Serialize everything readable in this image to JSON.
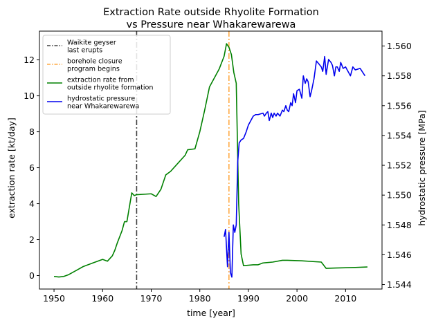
{
  "chart_data": {
    "type": "line",
    "title_lines": [
      "Extraction Rate outside Rhyolite Formation",
      "vs Pressure near Whakarewarewa"
    ],
    "xlabel": "time [year]",
    "ylabel_left": "extraction rate [kt/day]",
    "ylabel_right": "hydrostatic pressure [MPa]",
    "xlim": [
      1947,
      2017.5
    ],
    "ylim_left": [
      -0.75,
      13.6
    ],
    "ylim_right": [
      1.5437,
      1.561
    ],
    "x_ticks": [
      1950,
      1960,
      1970,
      1980,
      1990,
      2000,
      2010
    ],
    "x_tick_labels": [
      "1950",
      "1960",
      "1970",
      "1980",
      "1990",
      "2000",
      "2010"
    ],
    "left_ticks": [
      0,
      2,
      4,
      6,
      8,
      10,
      12
    ],
    "left_tick_labels": [
      "0",
      "2",
      "4",
      "6",
      "8",
      "10",
      "12"
    ],
    "right_ticks": [
      1.544,
      1.546,
      1.548,
      1.55,
      1.552,
      1.554,
      1.556,
      1.558,
      1.56
    ],
    "right_tick_labels": [
      "1.544",
      "1.546",
      "1.548",
      "1.550",
      "1.552",
      "1.554",
      "1.556",
      "1.558",
      "1.560"
    ],
    "grid": false,
    "legend_position": "upper-left",
    "vlines": [
      {
        "x": 1967,
        "name": "Waikite geyser last erupts",
        "label_lines": [
          "Waikite geyser",
          "last erupts"
        ],
        "color": "#404040",
        "dash": "8,3,2,3"
      },
      {
        "x": 1986,
        "name": "borehole closure program begins",
        "label_lines": [
          "borehole closure",
          "program begins"
        ],
        "color": "#ffaa44",
        "dash": "8,3,2,3"
      }
    ],
    "series": [
      {
        "name": "extraction rate from outside rhyolite formation",
        "label_lines": [
          "extraction rate from",
          "outside rhyolite formation"
        ],
        "color": "#008000",
        "axis": "left",
        "x": [
          1950,
          1951,
          1952,
          1953,
          1954,
          1955,
          1956,
          1957,
          1958,
          1960,
          1961,
          1962,
          1962.5,
          1963,
          1964,
          1964.5,
          1965,
          1966,
          1966.5,
          1967,
          1970,
          1971,
          1972,
          1973,
          1974,
          1975,
          1977,
          1977.5,
          1979,
          1980,
          1981,
          1982,
          1983,
          1984,
          1985,
          1985.5,
          1986,
          1986.5,
          1987,
          1987.5,
          1988,
          1988.5,
          1989,
          1991,
          1992,
          1993,
          1995,
          1997,
          1998,
          2001,
          2005,
          2006,
          2008,
          2012,
          2014.5
        ],
        "y": [
          -0.05,
          -0.08,
          -0.05,
          0.05,
          0.2,
          0.35,
          0.5,
          0.6,
          0.7,
          0.9,
          0.8,
          1.1,
          1.4,
          1.8,
          2.5,
          3.0,
          3.0,
          4.6,
          4.45,
          4.5,
          4.55,
          4.4,
          4.8,
          5.6,
          5.8,
          6.1,
          6.7,
          7.0,
          7.05,
          8.0,
          9.2,
          10.5,
          11.0,
          11.5,
          12.2,
          12.9,
          12.7,
          12.3,
          11.3,
          10.7,
          4.0,
          1.2,
          0.55,
          0.6,
          0.6,
          0.7,
          0.75,
          0.85,
          0.85,
          0.82,
          0.75,
          0.4,
          0.42,
          0.45,
          0.48
        ]
      },
      {
        "name": "hydrostatic pressure near Whakarewarewa",
        "label_lines": [
          "hydrostatic pressure",
          "near Whakarewarewa"
        ],
        "color": "#0000ee",
        "axis": "right",
        "x": [
          1985,
          1985.3,
          1985.7,
          1986,
          1986.3,
          1986.6,
          1986.9,
          1987.2,
          1987.5,
          1987.8,
          1988.1,
          1988.5,
          1989,
          1989.5,
          1990,
          1990.5,
          1991,
          1991.5,
          1992,
          1993,
          1993.3,
          1993.7,
          1994,
          1994.3,
          1994.7,
          1995,
          1995.3,
          1995.7,
          1996,
          1996.5,
          1997,
          1997.3,
          1997.7,
          1998,
          1998.3,
          1998.7,
          1999,
          1999.3,
          1999.7,
          2000,
          2000.5,
          2001,
          2001.3,
          2001.7,
          2002,
          2002.3,
          2002.7,
          2003,
          2003.5,
          2004,
          2004.5,
          2005,
          2005.3,
          2005.7,
          2006,
          2006.5,
          2007,
          2007.3,
          2007.7,
          2008,
          2008.3,
          2008.7,
          2009,
          2009.5,
          2010,
          2010.5,
          2011,
          2011.5,
          2012,
          2013,
          2014
        ],
        "y": [
          1.5472,
          1.5477,
          1.5452,
          1.5475,
          1.5448,
          1.5445,
          1.548,
          1.5475,
          1.548,
          1.5522,
          1.5535,
          1.5537,
          1.5538,
          1.5542,
          1.5547,
          1.555,
          1.5553,
          1.5554,
          1.5554,
          1.5555,
          1.5553,
          1.5555,
          1.5556,
          1.555,
          1.5555,
          1.5552,
          1.5555,
          1.5553,
          1.5555,
          1.5553,
          1.5557,
          1.5556,
          1.556,
          1.5557,
          1.5556,
          1.5562,
          1.556,
          1.5568,
          1.5562,
          1.557,
          1.5571,
          1.5565,
          1.558,
          1.5575,
          1.5578,
          1.5576,
          1.5566,
          1.557,
          1.5578,
          1.559,
          1.5588,
          1.5586,
          1.5583,
          1.5593,
          1.5581,
          1.5591,
          1.5589,
          1.5587,
          1.558,
          1.5586,
          1.5586,
          1.5583,
          1.5589,
          1.5585,
          1.5586,
          1.5583,
          1.558,
          1.5586,
          1.5584,
          1.5585,
          1.558
        ]
      }
    ]
  }
}
